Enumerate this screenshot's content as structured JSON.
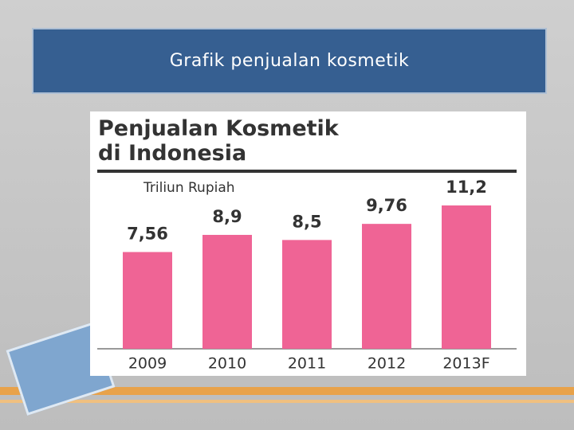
{
  "slide": {
    "title": "Grafik penjualan kosmetik"
  },
  "chart_data": {
    "type": "bar",
    "title": "Penjualan Kosmetik di Indonesia",
    "subtitle": "Triliun Rupiah",
    "categories": [
      "2009",
      "2010",
      "2011",
      "2012",
      "2013F"
    ],
    "values": [
      7.56,
      8.9,
      8.5,
      9.76,
      11.2
    ],
    "value_labels": [
      "7,56",
      "8,9",
      "8,5",
      "9,76",
      "11,2"
    ],
    "color": "#ef6495"
  }
}
